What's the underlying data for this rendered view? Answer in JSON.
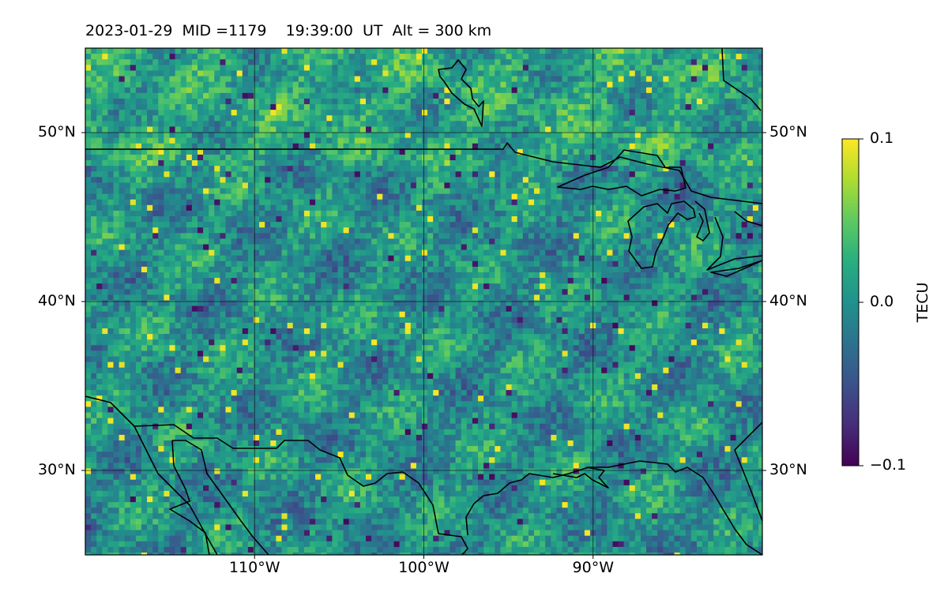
{
  "header": {
    "title": "2023-01-29  MID =1179    19:39:00  UT  Alt = 300 km"
  },
  "map": {
    "extent": {
      "lon_min": -120,
      "lon_max": -80,
      "lat_min": 25,
      "lat_max": 55
    },
    "projection": "plate-carree",
    "gridlines": true,
    "colormap": "viridis",
    "lat_ticks": [
      {
        "value": 50,
        "label": "50°N"
      },
      {
        "value": 40,
        "label": "40°N"
      },
      {
        "value": 30,
        "label": "30°N"
      }
    ],
    "lon_ticks": [
      {
        "value": -110,
        "label": "110°W"
      },
      {
        "value": -100,
        "label": "100°W"
      },
      {
        "value": -90,
        "label": "90°W"
      }
    ]
  },
  "colorbar": {
    "label": "TECU",
    "min": -0.1,
    "max": 0.1,
    "ticks": [
      {
        "value": 0.1,
        "label": "0.1"
      },
      {
        "value": 0.0,
        "label": "0.0"
      },
      {
        "value": -0.1,
        "label": "−0.1"
      }
    ]
  }
}
